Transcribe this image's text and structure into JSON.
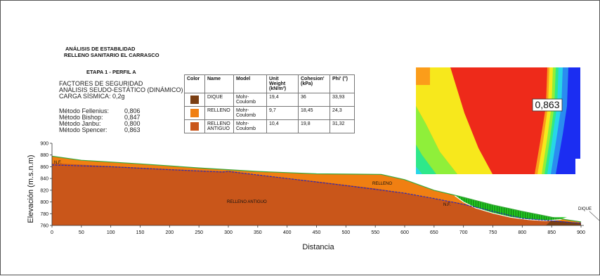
{
  "header": {
    "title_1": "ANÁLISIS DE ESTABILIDAD",
    "title_2": "RELLENO SANITARIO EL CARRASCO",
    "stage": "ETAPA 1 - PERFIL A"
  },
  "factors": {
    "heading": "FACTORES DE SEGURIDAD",
    "analysis": "ANÁLISIS SEUDO-ESTÁTICO (DINÁMICO)",
    "seismic": "CARGA SÍSMICA: 0,2g",
    "methods": [
      {
        "name": "Método Fellenius:",
        "value": "0,806"
      },
      {
        "name": "Método Bishop:",
        "value": "0,847"
      },
      {
        "name": "Método Janbu:",
        "value": "0,800"
      },
      {
        "name": "Método Spencer:",
        "value": "0,863"
      }
    ]
  },
  "materials_table": {
    "headers": [
      "Color",
      "Name",
      "Model",
      "Unit Weight (kN/m³)",
      "Cohesion' (kPa)",
      "Phi' (°)"
    ],
    "rows": [
      {
        "color": "#7a3e12",
        "name": "DIQUE",
        "model": "Mohr-Coulomb",
        "unit_weight": "19,4",
        "cohesion": "36",
        "phi": "33,93"
      },
      {
        "color": "#f07f12",
        "name": "RELLENO",
        "model": "Mohr-Coulomb",
        "unit_weight": "9,7",
        "cohesion": "18,45",
        "phi": "24,3"
      },
      {
        "color": "#c9561a",
        "name": "RELLENO ANTIGUO",
        "model": "Mohr-Coulomb",
        "unit_weight": "10,4",
        "cohesion": "19,8",
        "phi": "31,32"
      }
    ]
  },
  "contour": {
    "min_fs_label": "0,863"
  },
  "profile": {
    "ylabel": "Elevación (m.s.n.m)",
    "xlabel": "Distancia",
    "x_ticks": [
      "0",
      "50",
      "100",
      "150",
      "200",
      "250",
      "300",
      "350",
      "400",
      "450",
      "500",
      "550",
      "600",
      "650",
      "700",
      "750",
      "800",
      "850",
      "900"
    ],
    "y_ticks": [
      "900",
      "880",
      "860",
      "840",
      "820",
      "800",
      "780",
      "760"
    ],
    "xlim": [
      0,
      900
    ],
    "ylim": [
      760,
      900
    ],
    "labels": {
      "nf_left": "N.F.",
      "nf_right": "N.F.",
      "relleno": "RELLENO",
      "relleno_antiguo": "RELLENO ANTIGUO",
      "dique": "DIQUE"
    },
    "colors": {
      "relleno": "#f07f12",
      "relleno_antiguo": "#c9561a",
      "dique": "#7a3e12",
      "water_table": "#2a2ab8",
      "surface": "#3aa83a",
      "slip_zone": "#22c922"
    },
    "ground_surface": [
      [
        0,
        878
      ],
      [
        50,
        871
      ],
      [
        150,
        865
      ],
      [
        250,
        858
      ],
      [
        350,
        852
      ],
      [
        450,
        848
      ],
      [
        560,
        847
      ],
      [
        600,
        838
      ],
      [
        650,
        820
      ],
      [
        700,
        808
      ],
      [
        750,
        795
      ],
      [
        800,
        784
      ],
      [
        850,
        774
      ],
      [
        880,
        769
      ],
      [
        900,
        766
      ]
    ],
    "interface_old_fill": [
      [
        0,
        866
      ],
      [
        100,
        861
      ],
      [
        200,
        856
      ],
      [
        290,
        852
      ],
      [
        300,
        853
      ],
      [
        350,
        846
      ],
      [
        450,
        835
      ],
      [
        550,
        823
      ],
      [
        600,
        815
      ],
      [
        650,
        806
      ],
      [
        700,
        797
      ],
      [
        750,
        786
      ],
      [
        800,
        777
      ],
      [
        850,
        768
      ],
      [
        880,
        766
      ]
    ],
    "water_table": [
      [
        0,
        863
      ],
      [
        100,
        860
      ],
      [
        200,
        855
      ],
      [
        290,
        851
      ],
      [
        300,
        852
      ],
      [
        400,
        840
      ],
      [
        500,
        828
      ],
      [
        600,
        815
      ],
      [
        650,
        806
      ],
      [
        700,
        796
      ],
      [
        750,
        784
      ],
      [
        800,
        772
      ],
      [
        850,
        768
      ],
      [
        880,
        765
      ],
      [
        900,
        764
      ]
    ],
    "slip_surface": [
      [
        685,
        811
      ],
      [
        700,
        800
      ],
      [
        720,
        790
      ],
      [
        750,
        781
      ],
      [
        780,
        774
      ],
      [
        810,
        770
      ],
      [
        840,
        768
      ],
      [
        865,
        770
      ],
      [
        878,
        774
      ]
    ]
  }
}
